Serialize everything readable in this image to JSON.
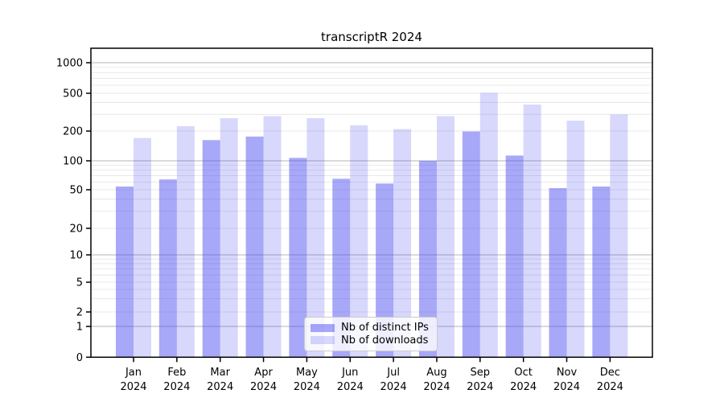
{
  "chart_data": {
    "type": "bar",
    "title": "transcriptR 2024",
    "categories": [
      "Jan",
      "Feb",
      "Mar",
      "Apr",
      "May",
      "Jun",
      "Jul",
      "Aug",
      "Sep",
      "Oct",
      "Nov",
      "Dec"
    ],
    "category_year": "2024",
    "series": [
      {
        "name": "Nb of distinct IPs",
        "color": "rgba(70,70,240,0.47)",
        "values": [
          54,
          64,
          162,
          176,
          107,
          65,
          58,
          100,
          198,
          113,
          52,
          54
        ]
      },
      {
        "name": "Nb of downloads",
        "color": "rgba(70,70,240,0.21)",
        "values": [
          170,
          225,
          273,
          287,
          273,
          230,
          210,
          287,
          505,
          380,
          257,
          299
        ]
      }
    ],
    "y_axis": {
      "scale": "log-like",
      "ticks": [
        0,
        1,
        2,
        5,
        10,
        20,
        50,
        100,
        200,
        500,
        1000
      ]
    },
    "xlabel": "",
    "ylabel": "",
    "grid": true,
    "legend_position": "bottom-center",
    "colors": {
      "bar_base": "#4646f0",
      "major_grid": "#b4b4b4",
      "minor_grid": "#e2e2e2",
      "axis": "#000000"
    }
  }
}
